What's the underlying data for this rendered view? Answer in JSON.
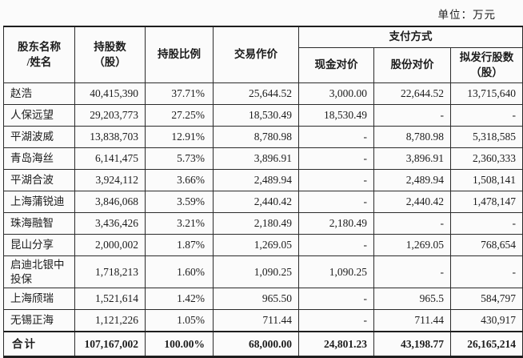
{
  "unit_label": "单位：万元",
  "colors": {
    "background": "#fbfbfb",
    "text": "#1c1c1c",
    "border": "#2b2b2b"
  },
  "table": {
    "header": {
      "shareholder": "股东名称\n/姓名",
      "shares_held": "持股数\n（股）",
      "ratio": "持股比例",
      "deal_price": "交易作价",
      "payment_method": "支付方式",
      "cash_consideration": "现金对价",
      "share_consideration": "股份对价",
      "shares_to_issue": "拟发行股数\n（股）"
    },
    "rows": [
      {
        "name": "赵浩",
        "shares": "40,415,390",
        "ratio": "37.71%",
        "price": "25,644.52",
        "cash": "3,000.00",
        "share": "22,644.52",
        "issue": "13,715,640"
      },
      {
        "name": "人保远望",
        "shares": "29,203,773",
        "ratio": "27.25%",
        "price": "18,530.49",
        "cash": "18,530.49",
        "share": "-",
        "issue": "-"
      },
      {
        "name": "平湖波威",
        "shares": "13,838,703",
        "ratio": "12.91%",
        "price": "8,780.98",
        "cash": "-",
        "share": "8,780.98",
        "issue": "5,318,585"
      },
      {
        "name": "青岛海丝",
        "shares": "6,141,475",
        "ratio": "5.73%",
        "price": "3,896.91",
        "cash": "-",
        "share": "3,896.91",
        "issue": "2,360,333"
      },
      {
        "name": "平湖合波",
        "shares": "3,924,112",
        "ratio": "3.66%",
        "price": "2,489.94",
        "cash": "-",
        "share": "2,489.94",
        "issue": "1,508,141"
      },
      {
        "name": "上海蒲锐迪",
        "shares": "3,846,068",
        "ratio": "3.59%",
        "price": "2,440.42",
        "cash": "-",
        "share": "2,440.42",
        "issue": "1,478,147"
      },
      {
        "name": "珠海融智",
        "shares": "3,436,426",
        "ratio": "3.21%",
        "price": "2,180.49",
        "cash": "2,180.49",
        "share": "-",
        "issue": "-"
      },
      {
        "name": "昆山分享",
        "shares": "2,000,002",
        "ratio": "1.87%",
        "price": "1,269.05",
        "cash": "-",
        "share": "1,269.05",
        "issue": "768,654"
      },
      {
        "name": "启迪北银中\n投保",
        "shares": "1,718,213",
        "ratio": "1.60%",
        "price": "1,090.25",
        "cash": "1,090.25",
        "share": "-",
        "issue": "-"
      },
      {
        "name": "上海颀瑞",
        "shares": "1,521,614",
        "ratio": "1.42%",
        "price": "965.50",
        "cash": "-",
        "share": "965.5",
        "issue": "584,797"
      },
      {
        "name": "无锡正海",
        "shares": "1,121,226",
        "ratio": "1.05%",
        "price": "711.44",
        "cash": "-",
        "share": "711.44",
        "issue": "430,917"
      }
    ],
    "total": {
      "name": "合计",
      "shares": "107,167,002",
      "ratio": "100.00%",
      "price": "68,000.00",
      "cash": "24,801.23",
      "share": "43,198.77",
      "issue": "26,165,214"
    }
  }
}
